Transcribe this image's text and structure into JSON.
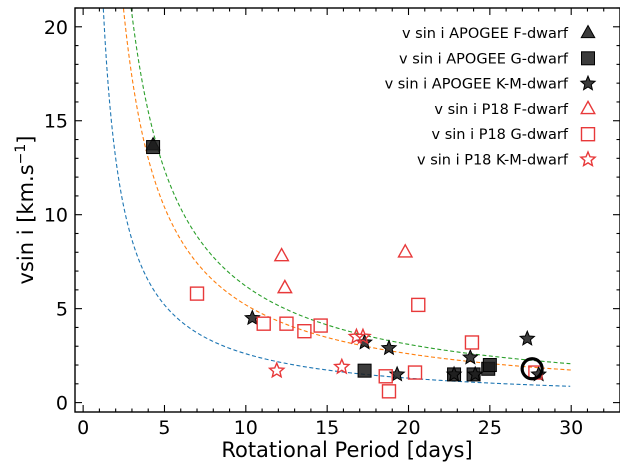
{
  "chart_data": {
    "type": "scatter",
    "xlabel": "Rotational Period [days]",
    "ylabel_main": "vsin i [km.s",
    "ylabel_sup": "−1",
    "ylabel_end": "]",
    "xlim": [
      -0.5,
      33
    ],
    "ylim": [
      -0.5,
      21
    ],
    "xticks": [
      0,
      5,
      10,
      15,
      20,
      25,
      30
    ],
    "yticks": [
      0,
      5,
      10,
      15,
      20
    ],
    "legend_position": "top-right",
    "grid": false,
    "curves": [
      {
        "color": "#1f77b4",
        "coef": 26,
        "x_start": 1.24
      },
      {
        "color": "#ff7f0e",
        "coef": 52,
        "x_start": 2.48
      },
      {
        "color": "#2ca02c",
        "coef": 62,
        "x_start": 2.95
      }
    ],
    "series": [
      {
        "name": "v sin i APOGEE F-dwarf",
        "marker": "triangle",
        "filled": true,
        "color": "#000000",
        "points": [
          [
            4.3,
            13.7
          ]
        ]
      },
      {
        "name": "v sin i APOGEE G-dwarf",
        "marker": "square",
        "filled": true,
        "color": "#000000",
        "points": [
          [
            4.3,
            13.6
          ],
          [
            17.3,
            1.7
          ],
          [
            22.8,
            1.5
          ],
          [
            24.0,
            1.5
          ],
          [
            24.9,
            1.8
          ],
          [
            25.0,
            2.0
          ]
        ]
      },
      {
        "name": "v sin i APOGEE K-M-dwarf",
        "marker": "star",
        "filled": true,
        "color": "#000000",
        "points": [
          [
            10.4,
            4.5
          ],
          [
            17.3,
            3.2
          ],
          [
            18.8,
            2.9
          ],
          [
            19.3,
            1.5
          ],
          [
            22.8,
            1.5
          ],
          [
            23.8,
            2.4
          ],
          [
            24.1,
            1.5
          ],
          [
            27.3,
            3.4
          ],
          [
            28.0,
            1.5
          ]
        ]
      },
      {
        "name": "v sin i P18 F-dwarf",
        "marker": "triangle",
        "filled": false,
        "color": "#e8393a",
        "points": [
          [
            12.2,
            7.8
          ],
          [
            12.4,
            6.1
          ],
          [
            19.8,
            8.0
          ]
        ]
      },
      {
        "name": "v sin i P18 G-dwarf",
        "marker": "square",
        "filled": false,
        "color": "#e8393a",
        "points": [
          [
            7.0,
            5.8
          ],
          [
            11.1,
            4.2
          ],
          [
            12.5,
            4.2
          ],
          [
            13.6,
            3.8
          ],
          [
            14.6,
            4.1
          ],
          [
            18.6,
            1.4
          ],
          [
            18.8,
            0.6
          ],
          [
            20.4,
            1.6
          ],
          [
            20.6,
            5.2
          ],
          [
            23.9,
            3.2
          ],
          [
            27.8,
            1.6
          ]
        ]
      },
      {
        "name": "v sin i P18 K-M-dwarf",
        "marker": "star",
        "filled": false,
        "color": "#e8393a",
        "points": [
          [
            11.9,
            1.7
          ],
          [
            15.9,
            1.9
          ],
          [
            16.8,
            3.5
          ],
          [
            17.2,
            3.5
          ]
        ]
      }
    ],
    "highlight_circle": {
      "x": 27.6,
      "y": 1.8
    }
  }
}
